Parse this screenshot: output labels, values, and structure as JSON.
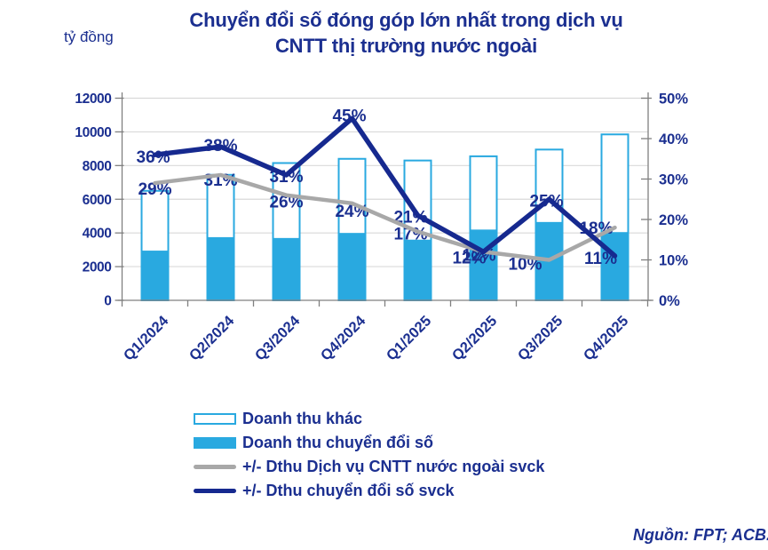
{
  "header": {
    "y_axis_unit": "tỷ đồng",
    "title_line1": "Chuyển đổi số đóng góp lớn nhất trong dịch vụ",
    "title_line2": "CNTT thị trường nước ngoài"
  },
  "source_note": "Nguồn: FPT; ACB.",
  "colors": {
    "navy_text": "#1b2f90",
    "navy_line": "#16298f",
    "cyan": "#29a9e0",
    "gray_line": "#a8a8a8",
    "gridline": "#d9d9d9",
    "axis": "#808080",
    "background": "#ffffff"
  },
  "legend": {
    "items": [
      {
        "label": "Doanh thu khác",
        "swatch": "bar-outline"
      },
      {
        "label": "Doanh thu chuyển đổi số",
        "swatch": "bar-solid"
      },
      {
        "label": "+/- Dthu Dịch vụ CNTT nước ngoài svck",
        "swatch": "line-gray"
      },
      {
        "label": "+/- Dthu chuyển đổi số svck",
        "swatch": "line-navy"
      }
    ]
  },
  "chart_data": {
    "type": "combo",
    "title": "Chuyển đổi số đóng góp lớn nhất trong dịch vụ CNTT thị trường nước ngoài",
    "categories": [
      "Q1/2024",
      "Q2/2024",
      "Q3/2024",
      "Q4/2024",
      "Q1/2025",
      "Q2/2025",
      "Q3/2025",
      "Q4/2025"
    ],
    "left_axis": {
      "unit": "tỷ đồng",
      "min": 0,
      "max": 12000,
      "ticks": [
        0,
        2000,
        4000,
        6000,
        8000,
        10000,
        12000
      ]
    },
    "right_axis": {
      "min": 0,
      "max": 50,
      "ticks": [
        0,
        10,
        20,
        30,
        40,
        50
      ],
      "tick_format": "percent"
    },
    "grid": true,
    "legend_position": "bottom-left",
    "stack_note": "Doanh thu khác is stacked on top of Doanh thu chuyển đổi số",
    "stack_totals": [
      6500,
      7450,
      8150,
      8400,
      8300,
      8550,
      8950,
      9850
    ],
    "series": [
      {
        "name": "Doanh thu khác",
        "type": "bar",
        "stack": "revenue",
        "style": "outline",
        "values": [
          3550,
          3700,
          4450,
          4400,
          4700,
          4350,
          4300,
          5800
        ]
      },
      {
        "name": "Doanh thu chuyển đổi số",
        "type": "bar",
        "stack": "revenue",
        "style": "solid",
        "values": [
          2950,
          3750,
          3700,
          4000,
          3600,
          4200,
          4650,
          4050
        ]
      },
      {
        "name": "+/- Dthu Dịch vụ CNTT nước ngoài svck",
        "type": "line",
        "axis": "right",
        "unit": "%",
        "values": [
          29,
          31,
          26,
          24,
          17,
          12,
          10,
          18
        ],
        "labels": [
          "29%",
          "31%",
          "26%",
          "24%",
          "17%",
          "12%",
          "10%",
          "18%"
        ]
      },
      {
        "name": "+/- Dthu chuyển đổi số svck",
        "type": "line",
        "axis": "right",
        "unit": "%",
        "values": [
          36,
          38,
          31,
          45,
          21,
          12,
          25,
          11
        ],
        "labels": [
          "36%",
          "38%",
          "31%",
          "45%",
          "21%",
          "12%",
          "25%",
          "11%"
        ]
      }
    ]
  }
}
